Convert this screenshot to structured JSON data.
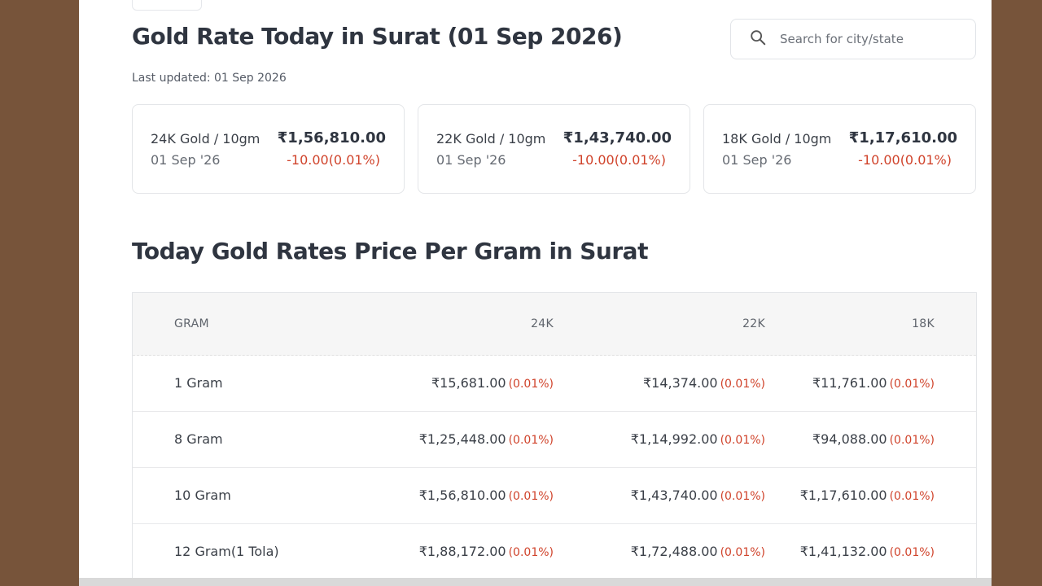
{
  "header": {
    "title": "Gold Rate Today in Surat (01 Sep 2026)",
    "last_updated": "Last updated: 01 Sep 2026"
  },
  "search": {
    "placeholder": "Search for city/state"
  },
  "cards": [
    {
      "label": "24K Gold / 10gm",
      "date": "01 Sep '26",
      "price": "₹1,56,810.00",
      "change": "-10.00(0.01%)"
    },
    {
      "label": "22K Gold / 10gm",
      "date": "01 Sep '26",
      "price": "₹1,43,740.00",
      "change": "-10.00(0.01%)"
    },
    {
      "label": "18K Gold / 10gm",
      "date": "01 Sep '26",
      "price": "₹1,17,610.00",
      "change": "-10.00(0.01%)"
    }
  ],
  "table": {
    "title": "Today Gold Rates Price Per Gram in Surat",
    "headers": [
      "GRAM",
      "24K",
      "22K",
      "18K"
    ],
    "rows": [
      {
        "gram": "1 Gram",
        "k24": "₹15,681.00",
        "k24_pct": "(0.01%)",
        "k22": "₹14,374.00",
        "k22_pct": "(0.01%)",
        "k18": "₹11,761.00",
        "k18_pct": "(0.01%)"
      },
      {
        "gram": "8 Gram",
        "k24": "₹1,25,448.00",
        "k24_pct": "(0.01%)",
        "k22": "₹1,14,992.00",
        "k22_pct": "(0.01%)",
        "k18": "₹94,088.00",
        "k18_pct": "(0.01%)"
      },
      {
        "gram": "10 Gram",
        "k24": "₹1,56,810.00",
        "k24_pct": "(0.01%)",
        "k22": "₹1,43,740.00",
        "k22_pct": "(0.01%)",
        "k18": "₹1,17,610.00",
        "k18_pct": "(0.01%)"
      },
      {
        "gram": "12 Gram(1 Tola)",
        "k24": "₹1,88,172.00",
        "k24_pct": "(0.01%)",
        "k22": "₹1,72,488.00",
        "k22_pct": "(0.01%)",
        "k18": "₹1,41,132.00",
        "k18_pct": "(0.01%)"
      }
    ]
  },
  "colors": {
    "background": "#77543a",
    "negative": "#d0432b",
    "header_bg": "#f6f6f6"
  }
}
